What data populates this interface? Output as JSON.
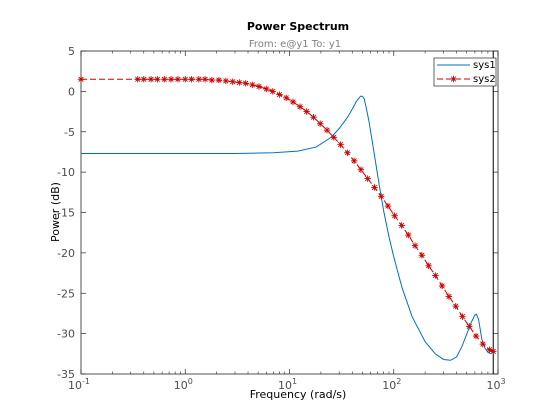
{
  "chart_data": {
    "type": "line",
    "title": "Power Spectrum",
    "subtitle": "From: e@y1  To: y1",
    "xlabel": "Frequency  (rad/s)",
    "ylabel": "Power (dB)",
    "xscale": "log",
    "xlim": [
      0.1,
      1000
    ],
    "ylim": [
      -35,
      5
    ],
    "x_ticks": [
      0.1,
      1,
      10,
      100,
      1000
    ],
    "x_tick_labels": [
      {
        "base": "10",
        "exp": "-1"
      },
      {
        "base": "10",
        "exp": "0"
      },
      {
        "base": "10",
        "exp": "1"
      },
      {
        "base": "10",
        "exp": "2"
      },
      {
        "base": "10",
        "exp": "3"
      }
    ],
    "y_ticks": [
      5,
      0,
      -5,
      -10,
      -15,
      -20,
      -25,
      -30,
      -35
    ],
    "grid": false,
    "legend_position": "top-right",
    "vertical_line_x": 900,
    "series": [
      {
        "name": "sys1",
        "color": "#0072bd",
        "style": "solid",
        "x": [
          0.1,
          0.3,
          1,
          3,
          7,
          12,
          18,
          25,
          30,
          36,
          40,
          44,
          48,
          50,
          52,
          54,
          58,
          62,
          67,
          73,
          80,
          90,
          100,
          120,
          150,
          200,
          250,
          300,
          350,
          400,
          450,
          500,
          550,
          600,
          620,
          650,
          700,
          750,
          800,
          850
        ],
        "y": [
          -7.7,
          -7.7,
          -7.7,
          -7.7,
          -7.6,
          -7.4,
          -6.9,
          -5.7,
          -4.6,
          -3.2,
          -2.2,
          -1.2,
          -0.6,
          -0.6,
          -0.9,
          -1.8,
          -3.8,
          -6.1,
          -8.8,
          -11.8,
          -14.8,
          -18,
          -20.5,
          -24.3,
          -27.9,
          -31,
          -32.5,
          -33.2,
          -33.3,
          -32.9,
          -31.6,
          -30.1,
          -28.7,
          -27.7,
          -27.6,
          -28.2,
          -30.7,
          -31.8,
          -32.3,
          -32.5
        ]
      },
      {
        "name": "sys2",
        "color": "#cc0000",
        "style": "dashed",
        "marker": "asterisk",
        "x": [
          0.1,
          0.35,
          0.4,
          0.47,
          0.54,
          0.63,
          0.73,
          0.85,
          1.0,
          1.15,
          1.35,
          1.55,
          1.8,
          2.1,
          2.45,
          2.85,
          3.3,
          3.8,
          4.4,
          5.1,
          6.0,
          6.9,
          8.0,
          9.3,
          10.8,
          12.6,
          14.6,
          17,
          19.7,
          22.9,
          26.6,
          30.9,
          35.9,
          41.7,
          48.4,
          56.2,
          65.3,
          75.8,
          88,
          102,
          119,
          138,
          160,
          186,
          216,
          251,
          291,
          338,
          393,
          456,
          530,
          615,
          715,
          830,
          900
        ],
        "y": [
          1.5,
          1.5,
          1.5,
          1.5,
          1.5,
          1.5,
          1.5,
          1.5,
          1.5,
          1.5,
          1.5,
          1.5,
          1.4,
          1.4,
          1.3,
          1.2,
          1.1,
          1.0,
          0.8,
          0.6,
          0.3,
          0.0,
          -0.4,
          -0.8,
          -1.3,
          -1.9,
          -2.5,
          -3.2,
          -4.0,
          -4.8,
          -5.7,
          -6.6,
          -7.6,
          -8.6,
          -9.7,
          -10.8,
          -11.9,
          -13.0,
          -14.2,
          -15.4,
          -16.6,
          -17.8,
          -19.1,
          -20.3,
          -21.6,
          -22.8,
          -24.1,
          -25.4,
          -26.6,
          -27.9,
          -29.1,
          -30.3,
          -31.3,
          -32.0,
          -32.2
        ]
      }
    ]
  }
}
